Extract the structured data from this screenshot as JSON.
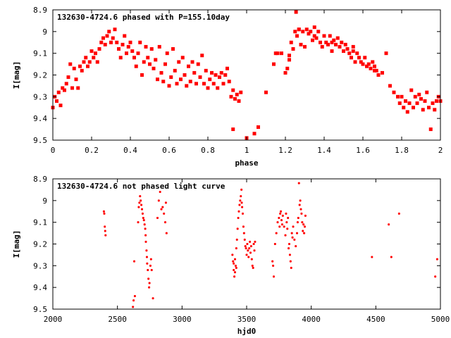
{
  "chart_data": [
    {
      "type": "scatter",
      "title": "132630-4724.6 phased with P=155.10day",
      "xlabel": "phase",
      "ylabel": "I[mag]",
      "xlim": [
        0,
        2
      ],
      "ylim": [
        8.9,
        9.5
      ],
      "y_inverted": true,
      "grid": false,
      "legend": "none",
      "marker": "filled-square",
      "color": "#ff0000",
      "xticks": [
        "0",
        "0.2",
        "0.4",
        "0.6",
        "0.8",
        "1",
        "1.2",
        "1.4",
        "1.6",
        "1.8",
        "2"
      ],
      "yticks": [
        "8.9",
        "9",
        "9.1",
        "9.2",
        "9.3",
        "9.4",
        "9.5"
      ],
      "points": [
        [
          0.0,
          9.35
        ],
        [
          0.01,
          9.3
        ],
        [
          0.02,
          9.32
        ],
        [
          0.03,
          9.28
        ],
        [
          0.04,
          9.34
        ],
        [
          0.05,
          9.26
        ],
        [
          0.06,
          9.27
        ],
        [
          0.07,
          9.24
        ],
        [
          0.08,
          9.21
        ],
        [
          0.09,
          9.15
        ],
        [
          0.1,
          9.26
        ],
        [
          0.11,
          9.17
        ],
        [
          0.12,
          9.22
        ],
        [
          0.13,
          9.26
        ],
        [
          0.14,
          9.16
        ],
        [
          0.15,
          9.18
        ],
        [
          0.16,
          9.14
        ],
        [
          0.17,
          9.12
        ],
        [
          0.18,
          9.16
        ],
        [
          0.19,
          9.14
        ],
        [
          0.2,
          9.09
        ],
        [
          0.21,
          9.12
        ],
        [
          0.22,
          9.1
        ],
        [
          0.23,
          9.14
        ],
        [
          0.24,
          9.08
        ],
        [
          0.25,
          9.05
        ],
        [
          0.26,
          9.03
        ],
        [
          0.27,
          9.06
        ],
        [
          0.28,
          9.02
        ],
        [
          0.29,
          9.0
        ],
        [
          0.3,
          9.05
        ],
        [
          0.31,
          9.03
        ],
        [
          0.32,
          8.99
        ],
        [
          0.33,
          9.05
        ],
        [
          0.34,
          9.08
        ],
        [
          0.35,
          9.12
        ],
        [
          0.36,
          9.06
        ],
        [
          0.37,
          9.02
        ],
        [
          0.38,
          9.1
        ],
        [
          0.39,
          9.07
        ],
        [
          0.4,
          9.05
        ],
        [
          0.41,
          9.09
        ],
        [
          0.42,
          9.12
        ],
        [
          0.43,
          9.16
        ],
        [
          0.44,
          9.1
        ],
        [
          0.45,
          9.05
        ],
        [
          0.46,
          9.2
        ],
        [
          0.47,
          9.14
        ],
        [
          0.48,
          9.07
        ],
        [
          0.49,
          9.12
        ],
        [
          0.5,
          9.15
        ],
        [
          0.51,
          9.08
        ],
        [
          0.52,
          9.17
        ],
        [
          0.53,
          9.13
        ],
        [
          0.54,
          9.22
        ],
        [
          0.55,
          9.07
        ],
        [
          0.56,
          9.19
        ],
        [
          0.57,
          9.23
        ],
        [
          0.58,
          9.15
        ],
        [
          0.59,
          9.1
        ],
        [
          0.6,
          9.25
        ],
        [
          0.61,
          9.21
        ],
        [
          0.62,
          9.08
        ],
        [
          0.63,
          9.18
        ],
        [
          0.64,
          9.24
        ],
        [
          0.65,
          9.14
        ],
        [
          0.66,
          9.22
        ],
        [
          0.67,
          9.12
        ],
        [
          0.68,
          9.2
        ],
        [
          0.69,
          9.25
        ],
        [
          0.7,
          9.16
        ],
        [
          0.71,
          9.23
        ],
        [
          0.72,
          9.14
        ],
        [
          0.73,
          9.19
        ],
        [
          0.74,
          9.24
        ],
        [
          0.75,
          9.15
        ],
        [
          0.76,
          9.21
        ],
        [
          0.77,
          9.11
        ],
        [
          0.78,
          9.24
        ],
        [
          0.79,
          9.18
        ],
        [
          0.8,
          9.26
        ],
        [
          0.81,
          9.22
        ],
        [
          0.82,
          9.19
        ],
        [
          0.83,
          9.24
        ],
        [
          0.84,
          9.2
        ],
        [
          0.85,
          9.26
        ],
        [
          0.86,
          9.21
        ],
        [
          0.87,
          9.19
        ],
        [
          0.88,
          9.24
        ],
        [
          0.89,
          9.2
        ],
        [
          0.9,
          9.17
        ],
        [
          0.91,
          9.23
        ],
        [
          0.92,
          9.3
        ],
        [
          0.93,
          9.27
        ],
        [
          0.94,
          9.31
        ],
        [
          0.95,
          9.29
        ],
        [
          0.96,
          9.32
        ],
        [
          0.97,
          9.28
        ],
        [
          0.93,
          9.45
        ],
        [
          1.0,
          9.49
        ],
        [
          1.04,
          9.47
        ],
        [
          1.06,
          9.44
        ],
        [
          1.1,
          9.28
        ],
        [
          1.14,
          9.15
        ],
        [
          1.15,
          9.1
        ],
        [
          1.16,
          9.1
        ],
        [
          1.18,
          9.1
        ],
        [
          1.2,
          9.19
        ],
        [
          1.21,
          9.17
        ],
        [
          1.22,
          9.13
        ],
        [
          1.23,
          9.05
        ],
        [
          1.24,
          9.08
        ],
        [
          1.25,
          9.0
        ],
        [
          1.255,
          8.91
        ],
        [
          1.26,
          9.02
        ],
        [
          1.27,
          8.99
        ],
        [
          1.28,
          9.06
        ],
        [
          1.29,
          9.0
        ],
        [
          1.3,
          9.07
        ],
        [
          1.31,
          8.99
        ],
        [
          1.32,
          9.01
        ],
        [
          1.33,
          9.0
        ],
        [
          1.34,
          9.04
        ],
        [
          1.35,
          8.98
        ],
        [
          1.36,
          9.03
        ],
        [
          1.37,
          9.0
        ],
        [
          1.38,
          9.05
        ],
        [
          1.39,
          9.07
        ],
        [
          1.4,
          9.02
        ],
        [
          1.41,
          9.05
        ],
        [
          1.42,
          9.06
        ],
        [
          1.43,
          9.02
        ],
        [
          1.44,
          9.09
        ],
        [
          1.45,
          9.04
        ],
        [
          1.46,
          9.06
        ],
        [
          1.47,
          9.03
        ],
        [
          1.48,
          9.07
        ],
        [
          1.49,
          9.05
        ],
        [
          1.5,
          9.09
        ],
        [
          1.51,
          9.06
        ],
        [
          1.52,
          9.08
        ],
        [
          1.53,
          9.1
        ],
        [
          1.54,
          9.12
        ],
        [
          1.55,
          9.09
        ],
        [
          1.56,
          9.14
        ],
        [
          1.57,
          9.1
        ],
        [
          1.58,
          9.12
        ],
        [
          1.59,
          9.14
        ],
        [
          1.6,
          9.15
        ],
        [
          1.61,
          9.12
        ],
        [
          1.62,
          9.16
        ],
        [
          1.63,
          9.15
        ],
        [
          1.64,
          9.17
        ],
        [
          1.65,
          9.14
        ],
        [
          1.66,
          9.16
        ],
        [
          1.67,
          9.18
        ],
        [
          1.68,
          9.2
        ],
        [
          1.7,
          9.19
        ],
        [
          1.72,
          9.1
        ],
        [
          1.74,
          9.25
        ],
        [
          1.76,
          9.28
        ],
        [
          1.78,
          9.3
        ],
        [
          1.79,
          9.33
        ],
        [
          1.8,
          9.3
        ],
        [
          1.81,
          9.35
        ],
        [
          1.82,
          9.32
        ],
        [
          1.83,
          9.37
        ],
        [
          1.84,
          9.33
        ],
        [
          1.85,
          9.27
        ],
        [
          1.86,
          9.35
        ],
        [
          1.87,
          9.3
        ],
        [
          1.88,
          9.33
        ],
        [
          1.89,
          9.29
        ],
        [
          1.9,
          9.31
        ],
        [
          1.91,
          9.36
        ],
        [
          1.92,
          9.32
        ],
        [
          1.93,
          9.28
        ],
        [
          1.94,
          9.35
        ],
        [
          1.95,
          9.45
        ],
        [
          1.96,
          9.33
        ],
        [
          1.97,
          9.36
        ],
        [
          1.98,
          9.32
        ],
        [
          1.99,
          9.3
        ],
        [
          2.0,
          9.32
        ],
        [
          1.66,
          9.18
        ],
        [
          1.55,
          9.07
        ],
        [
          1.44,
          9.05
        ],
        [
          1.35,
          9.02
        ],
        [
          1.27,
          8.99
        ],
        [
          1.22,
          9.11
        ]
      ]
    },
    {
      "type": "scatter",
      "title": "132630-4724.6 not phased light curve",
      "xlabel": "hjd0",
      "ylabel": "I[mag]",
      "xlim": [
        2000,
        5000
      ],
      "ylim": [
        8.9,
        9.5
      ],
      "y_inverted": true,
      "grid": false,
      "legend": "none",
      "marker": "small-dot",
      "color": "#ff0000",
      "xticks": [
        "2000",
        "2500",
        "3000",
        "3500",
        "4000",
        "4500",
        "5000"
      ],
      "yticks": [
        "8.9",
        "9",
        "9.1",
        "9.2",
        "9.3",
        "9.4",
        "9.5"
      ],
      "points": [
        [
          2395,
          9.05
        ],
        [
          2398,
          9.06
        ],
        [
          2402,
          9.12
        ],
        [
          2405,
          9.14
        ],
        [
          2408,
          9.16
        ],
        [
          2620,
          9.49
        ],
        [
          2625,
          9.46
        ],
        [
          2630,
          9.28
        ],
        [
          2635,
          9.44
        ],
        [
          2660,
          9.1
        ],
        [
          2665,
          9.03
        ],
        [
          2670,
          9.01
        ],
        [
          2675,
          8.98
        ],
        [
          2680,
          9.0
        ],
        [
          2685,
          9.02
        ],
        [
          2690,
          9.04
        ],
        [
          2695,
          9.06
        ],
        [
          2700,
          9.08
        ],
        [
          2705,
          9.09
        ],
        [
          2710,
          9.11
        ],
        [
          2715,
          9.13
        ],
        [
          2718,
          9.16
        ],
        [
          2720,
          9.19
        ],
        [
          2725,
          9.23
        ],
        [
          2728,
          9.26
        ],
        [
          2730,
          9.29
        ],
        [
          2735,
          9.32
        ],
        [
          2740,
          9.36
        ],
        [
          2745,
          9.4
        ],
        [
          2748,
          9.38
        ],
        [
          2755,
          9.3
        ],
        [
          2760,
          9.27
        ],
        [
          2765,
          9.32
        ],
        [
          2775,
          9.45
        ],
        [
          2810,
          9.08
        ],
        [
          2820,
          9.0
        ],
        [
          2830,
          8.96
        ],
        [
          2840,
          9.04
        ],
        [
          2850,
          9.03
        ],
        [
          2860,
          9.06
        ],
        [
          2870,
          9.1
        ],
        [
          2880,
          9.15
        ],
        [
          2875,
          9.01
        ],
        [
          3390,
          9.25
        ],
        [
          3395,
          9.28
        ],
        [
          3400,
          9.32
        ],
        [
          3405,
          9.35
        ],
        [
          3410,
          9.33
        ],
        [
          3415,
          9.3
        ],
        [
          3420,
          9.22
        ],
        [
          3425,
          9.18
        ],
        [
          3430,
          9.13
        ],
        [
          3435,
          9.08
        ],
        [
          3440,
          9.05
        ],
        [
          3445,
          9.02
        ],
        [
          3450,
          9.0
        ],
        [
          3455,
          8.98
        ],
        [
          3460,
          8.95
        ],
        [
          3462,
          9.01
        ],
        [
          3465,
          9.03
        ],
        [
          3470,
          9.06
        ],
        [
          3475,
          9.12
        ],
        [
          3480,
          9.15
        ],
        [
          3485,
          9.18
        ],
        [
          3490,
          9.21
        ],
        [
          3495,
          9.22
        ],
        [
          3500,
          9.25
        ],
        [
          3505,
          9.2
        ],
        [
          3510,
          9.23
        ],
        [
          3515,
          9.26
        ],
        [
          3520,
          9.22
        ],
        [
          3525,
          9.19
        ],
        [
          3530,
          9.24
        ],
        [
          3535,
          9.21
        ],
        [
          3540,
          9.27
        ],
        [
          3545,
          9.3
        ],
        [
          3550,
          9.31
        ],
        [
          3555,
          9.2
        ],
        [
          3560,
          9.23
        ],
        [
          3565,
          9.19
        ],
        [
          3400,
          9.29
        ],
        [
          3410,
          9.27
        ],
        [
          3420,
          9.31
        ],
        [
          3700,
          9.28
        ],
        [
          3705,
          9.3
        ],
        [
          3710,
          9.35
        ],
        [
          3720,
          9.2
        ],
        [
          3730,
          9.15
        ],
        [
          3740,
          9.1
        ],
        [
          3750,
          9.08
        ],
        [
          3755,
          9.12
        ],
        [
          3760,
          9.06
        ],
        [
          3765,
          9.05
        ],
        [
          3770,
          9.09
        ],
        [
          3775,
          9.11
        ],
        [
          3780,
          9.07
        ],
        [
          3790,
          9.12
        ],
        [
          3800,
          9.16
        ],
        [
          3805,
          9.06
        ],
        [
          3810,
          9.1
        ],
        [
          3815,
          9.13
        ],
        [
          3820,
          9.08
        ],
        [
          3825,
          9.22
        ],
        [
          3830,
          9.2
        ],
        [
          3835,
          9.25
        ],
        [
          3840,
          9.28
        ],
        [
          3845,
          9.31
        ],
        [
          3850,
          9.15
        ],
        [
          3855,
          9.17
        ],
        [
          3860,
          9.12
        ],
        [
          3870,
          9.18
        ],
        [
          3880,
          9.21
        ],
        [
          3890,
          9.15
        ],
        [
          3895,
          9.1
        ],
        [
          3900,
          9.08
        ],
        [
          3905,
          8.92
        ],
        [
          3910,
          9.02
        ],
        [
          3915,
          9.0
        ],
        [
          3920,
          9.04
        ],
        [
          3925,
          9.06
        ],
        [
          3930,
          9.1
        ],
        [
          3935,
          9.14
        ],
        [
          3940,
          9.11
        ],
        [
          3945,
          9.15
        ],
        [
          3950,
          9.12
        ],
        [
          3955,
          9.07
        ],
        [
          4470,
          9.26
        ],
        [
          4600,
          9.11
        ],
        [
          4620,
          9.26
        ],
        [
          4680,
          9.06
        ],
        [
          4960,
          9.35
        ],
        [
          4975,
          9.27
        ]
      ]
    }
  ]
}
